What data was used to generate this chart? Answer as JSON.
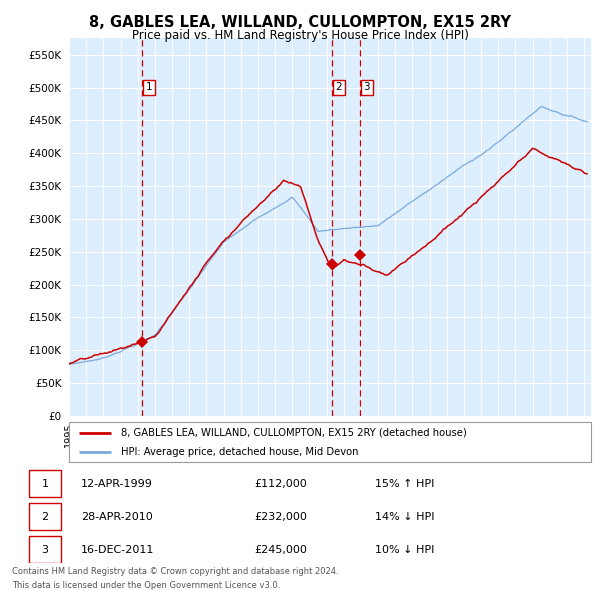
{
  "title": "8, GABLES LEA, WILLAND, CULLOMPTON, EX15 2RY",
  "subtitle": "Price paid vs. HM Land Registry's House Price Index (HPI)",
  "legend_line1": "8, GABLES LEA, WILLAND, CULLOMPTON, EX15 2RY (detached house)",
  "legend_line2": "HPI: Average price, detached house, Mid Devon",
  "footer1": "Contains HM Land Registry data © Crown copyright and database right 2024.",
  "footer2": "This data is licensed under the Open Government Licence v3.0.",
  "sales": [
    {
      "num": 1,
      "date": "12-APR-1999",
      "date_x": 1999.28,
      "price": 112000,
      "pct": "15%",
      "dir": "↑"
    },
    {
      "num": 2,
      "date": "28-APR-2010",
      "date_x": 2010.32,
      "price": 232000,
      "pct": "14%",
      "dir": "↓"
    },
    {
      "num": 3,
      "date": "16-DEC-2011",
      "date_x": 2011.96,
      "price": 245000,
      "pct": "10%",
      "dir": "↓"
    }
  ],
  "hpi_color": "#7aaadd",
  "price_color": "#cc0000",
  "sale_marker_color": "#cc0000",
  "vline_color": "#cc0000",
  "bg_color": "#ddeeff",
  "grid_color": "#ffffff",
  "box_color": "#cc0000",
  "ylim": [
    0,
    575000
  ],
  "yticks": [
    0,
    50000,
    100000,
    150000,
    200000,
    250000,
    300000,
    350000,
    400000,
    450000,
    500000,
    550000
  ],
  "xlim_start": 1995.0,
  "xlim_end": 2025.4
}
